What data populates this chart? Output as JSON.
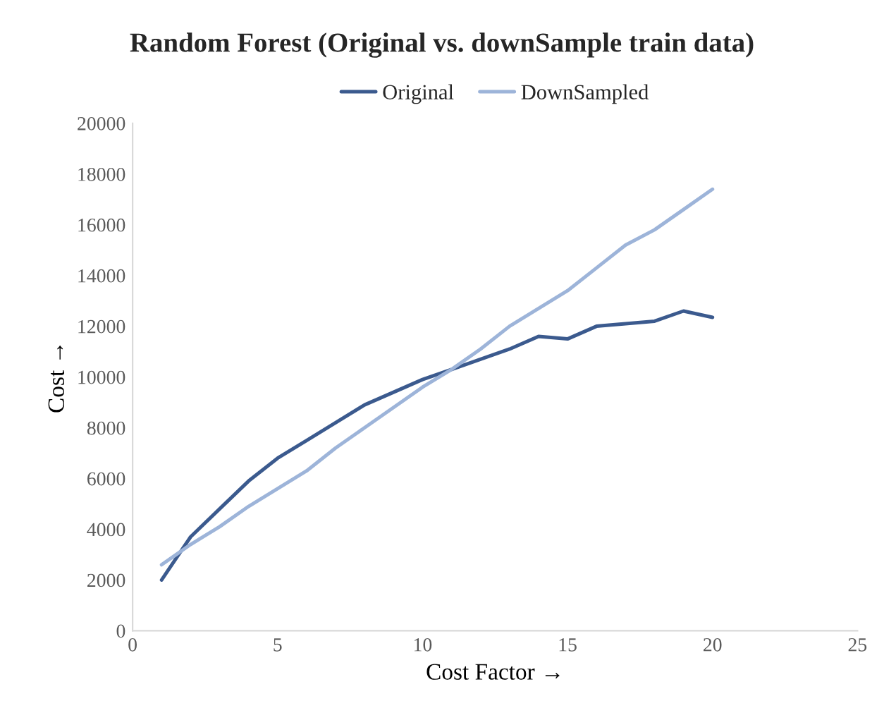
{
  "chart_data": {
    "type": "line",
    "title": "Random Forest (Original vs. downSample train data)",
    "xlabel": "Cost Factor →",
    "ylabel": "Cost →",
    "x": [
      1,
      2,
      3,
      4,
      5,
      6,
      7,
      8,
      9,
      10,
      11,
      12,
      13,
      14,
      15,
      16,
      17,
      18,
      19,
      20
    ],
    "series": [
      {
        "name": "Original",
        "color": "#3b5a8e",
        "values": [
          2000,
          3700,
          4800,
          5900,
          6800,
          7500,
          8200,
          8900,
          9400,
          9900,
          10300,
          10700,
          11100,
          11600,
          11500,
          12000,
          12100,
          12200,
          12600,
          12350
        ]
      },
      {
        "name": "DownSampled",
        "color": "#9db4d9",
        "values": [
          2600,
          3400,
          4100,
          4900,
          5600,
          6300,
          7200,
          8000,
          8800,
          9600,
          10300,
          11100,
          12000,
          12700,
          13400,
          14300,
          15200,
          15800,
          16600,
          17400
        ]
      }
    ],
    "xlim": [
      0,
      25
    ],
    "xticks": [
      0,
      5,
      10,
      15,
      20,
      25
    ],
    "ylim": [
      0,
      20000
    ],
    "yticks": [
      0,
      2000,
      4000,
      6000,
      8000,
      10000,
      12000,
      14000,
      16000,
      18000,
      20000
    ],
    "legend": "top",
    "grid": false,
    "marker": "none",
    "line_style": "solid"
  }
}
